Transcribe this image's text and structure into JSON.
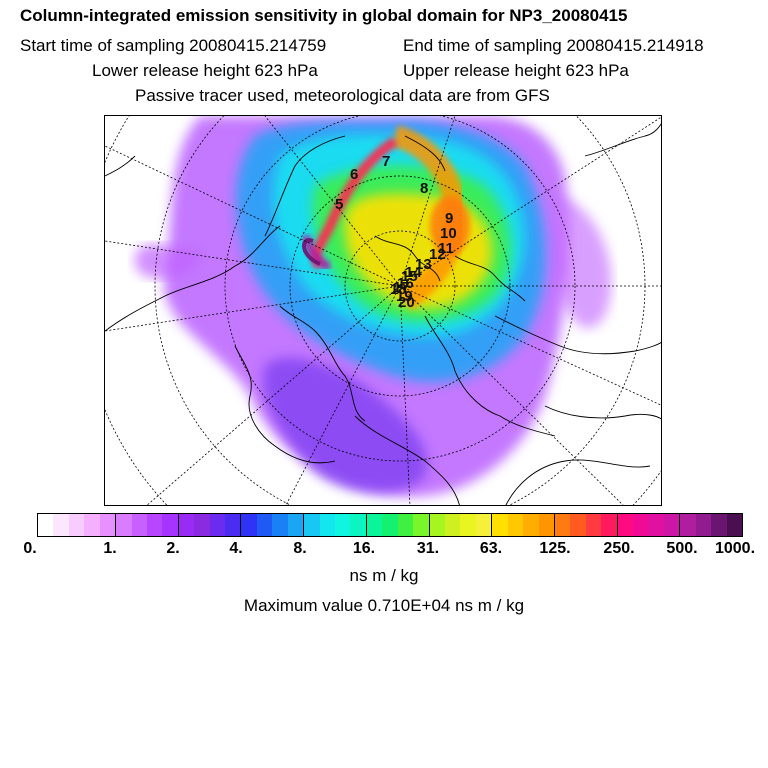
{
  "header": {
    "title": "Column-integrated emission sensitivity in global domain for NP3_20080415",
    "start_time": "Start time of sampling 20080415.214759",
    "end_time": "End time of sampling 20080415.214918",
    "lower_height": "Lower release height  623 hPa",
    "upper_height": "Upper release height  623 hPa",
    "tracer": "Passive tracer used, meteorological data are from GFS"
  },
  "map": {
    "trajectory_labels": [
      "5",
      "6",
      "7",
      "8",
      "9",
      "10",
      "11",
      "12",
      "13",
      "14",
      "15",
      "16",
      "17",
      "18",
      "19",
      "20"
    ]
  },
  "colorbar": {
    "ticks": [
      "0.",
      "1.",
      "2.",
      "4.",
      "8.",
      "16.",
      "31.",
      "63.",
      "125.",
      "250.",
      "500.",
      "1000."
    ],
    "colors": [
      "#ffffff",
      "#fde6ff",
      "#f9ccff",
      "#f4b0ff",
      "#e890ff",
      "#d97cff",
      "#c860ff",
      "#b845ff",
      "#a733ff",
      "#9a2bf5",
      "#8a2be2",
      "#6b2cf0",
      "#4a2df0",
      "#2e33f5",
      "#1f5af5",
      "#1a80f5",
      "#1aa6f5",
      "#19c7f5",
      "#14e6f0",
      "#10f5e0",
      "#0cf5c0",
      "#0af59a",
      "#14f070",
      "#40f040",
      "#7af52a",
      "#a6f520",
      "#cef020",
      "#e8f520",
      "#f5f03a",
      "#ffe000",
      "#ffc800",
      "#ffae00",
      "#ff9600",
      "#ff7a10",
      "#ff5a20",
      "#ff3a40",
      "#ff1a60",
      "#ff0a80",
      "#f00a96",
      "#e010a0",
      "#cc16a6",
      "#b01ea0",
      "#901c90",
      "#6a1570",
      "#4a0f50"
    ],
    "unit": "ns m / kg",
    "max_value": "Maximum value  0.710E+04 ns m / kg"
  }
}
